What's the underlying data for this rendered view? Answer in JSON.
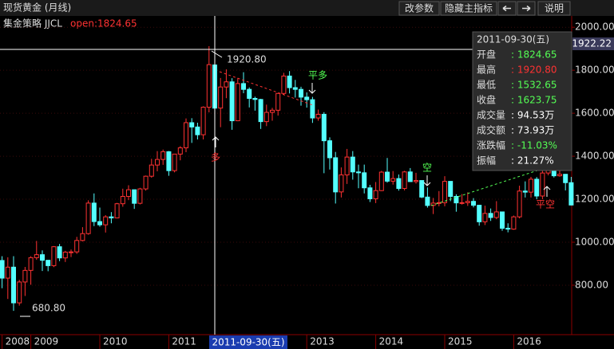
{
  "chart_data": {
    "type": "candlestick",
    "title": "现货黄金 (月线)",
    "buttons": [
      "改参数",
      "隐藏主指标",
      "说明"
    ],
    "indicator": {
      "name": "集金策略 JJCL",
      "value": "open:1824.65"
    },
    "categories": [
      "2008",
      null,
      null,
      null,
      null,
      "2009",
      null,
      null,
      null,
      null,
      null,
      null,
      null,
      null,
      null,
      null,
      null,
      "2010",
      null,
      null,
      null,
      null,
      null,
      null,
      null,
      null,
      null,
      null,
      null,
      "2011",
      null,
      null,
      null,
      null,
      null,
      null,
      null,
      null,
      null,
      null,
      null,
      null,
      null,
      null,
      null,
      null,
      null,
      null,
      null,
      null,
      null,
      null,
      null,
      "2013",
      null,
      null,
      null,
      null,
      null,
      null,
      null,
      null,
      null,
      null,
      null,
      "2014",
      null,
      null,
      null,
      null,
      null,
      null,
      null,
      null,
      null,
      null,
      null,
      "2015",
      null,
      null,
      null,
      null,
      null,
      null,
      null,
      null,
      null,
      null,
      null,
      "2016",
      null,
      null,
      null,
      null,
      null,
      null,
      null,
      null,
      null,
      null
    ],
    "up_color": "#ff3232",
    "down_color": "#54ffff",
    "series": {
      "open": [
        915,
        833,
        884,
        718,
        815,
        869,
        928,
        942,
        916,
        891,
        979,
        927,
        954,
        955,
        1008,
        1040,
        1182,
        1096,
        1081,
        1118,
        1113,
        1179,
        1213,
        1244,
        1181,
        1248,
        1307,
        1359,
        1385,
        1421,
        1333,
        1410,
        1439,
        1556,
        1536,
        1500,
        1628,
        1824.65,
        1624,
        1722,
        1746,
        1565,
        1738,
        1711,
        1669,
        1664,
        1561,
        1604,
        1614,
        1692,
        1773,
        1719,
        1711,
        1675,
        1663,
        1578,
        1595,
        1472,
        1393,
        1234,
        1313,
        1396,
        1327,
        1323,
        1253,
        1202,
        1240,
        1326,
        1284,
        1296,
        1250,
        1327,
        1282,
        1287,
        1210,
        1171,
        1182,
        1184,
        1283,
        1213,
        1183,
        1184,
        1190,
        1172,
        1095,
        1134,
        1115,
        1141,
        1065,
        1061,
        1118,
        1238,
        1233,
        1293,
        1215,
        1322,
        1351,
        1309,
        1316,
        1277
      ],
      "high": [
        935,
        930,
        935,
        825,
        885,
        935,
        1006,
        962,
        916,
        982,
        992,
        960,
        966,
        1025,
        1070,
        1195,
        1227,
        1161,
        1126,
        1140,
        1183,
        1249,
        1265,
        1245,
        1253,
        1310,
        1388,
        1424,
        1431,
        1424,
        1411,
        1447,
        1576,
        1577,
        1556,
        1632,
        1912,
        1920.8,
        1764,
        1804,
        1763,
        1764,
        1791,
        1720,
        1677,
        1667,
        1640,
        1625,
        1694,
        1788,
        1796,
        1755,
        1723,
        1697,
        1676,
        1617,
        1605,
        1488,
        1420,
        1348,
        1434,
        1424,
        1361,
        1361,
        1267,
        1280,
        1332,
        1392,
        1331,
        1315,
        1332,
        1345,
        1323,
        1287,
        1255,
        1206,
        1238,
        1307,
        1284,
        1223,
        1224,
        1232,
        1205,
        1174,
        1170,
        1157,
        1191,
        1142,
        1088,
        1124,
        1263,
        1283,
        1304,
        1303,
        1362,
        1375,
        1367,
        1352,
        1317,
        1304
      ],
      "low": [
        786,
        736,
        680.8,
        705,
        750,
        802,
        918,
        866,
        865,
        884,
        912,
        908,
        931,
        946,
        1004,
        1035,
        1075,
        1072,
        1045,
        1088,
        1111,
        1165,
        1196,
        1155,
        1176,
        1240,
        1300,
        1330,
        1360,
        1309,
        1325,
        1381,
        1419,
        1462,
        1478,
        1478,
        1604,
        1532.65,
        1535,
        1670,
        1523,
        1563,
        1693,
        1627,
        1612,
        1527,
        1540,
        1565,
        1589,
        1685,
        1692,
        1673,
        1635,
        1626,
        1555,
        1565,
        1321,
        1338,
        1180,
        1208,
        1271,
        1291,
        1251,
        1227,
        1187,
        1182,
        1238,
        1277,
        1268,
        1240,
        1241,
        1281,
        1273,
        1205,
        1161,
        1131,
        1167,
        1167,
        1191,
        1142,
        1175,
        1169,
        1162,
        1077,
        1080,
        1099,
        1107,
        1053,
        1046,
        1058,
        1111,
        1208,
        1208,
        1200,
        1200,
        1311,
        1301,
        1305,
        1241,
        1171
      ],
      "close": [
        833,
        884,
        718,
        815,
        869,
        928,
        942,
        916,
        891,
        979,
        927,
        954,
        955,
        1008,
        1040,
        1182,
        1096,
        1081,
        1118,
        1113,
        1179,
        1213,
        1244,
        1181,
        1248,
        1307,
        1359,
        1385,
        1421,
        1333,
        1410,
        1439,
        1556,
        1536,
        1500,
        1628,
        1826,
        1623.75,
        1722,
        1746,
        1565,
        1738,
        1711,
        1669,
        1664,
        1561,
        1604,
        1614,
        1692,
        1773,
        1719,
        1711,
        1675,
        1663,
        1578,
        1595,
        1472,
        1393,
        1234,
        1313,
        1396,
        1327,
        1323,
        1253,
        1202,
        1240,
        1326,
        1284,
        1296,
        1250,
        1327,
        1282,
        1287,
        1210,
        1171,
        1182,
        1184,
        1283,
        1213,
        1183,
        1184,
        1190,
        1172,
        1095,
        1134,
        1115,
        1141,
        1065,
        1061,
        1118,
        1238,
        1233,
        1293,
        1215,
        1322,
        1351,
        1309,
        1316,
        1277,
        1173
      ]
    },
    "ylim": [
      570,
      2060
    ],
    "yticks": [
      {
        "value": 800,
        "label": "800.00"
      },
      {
        "value": 1000,
        "label": "1000.00"
      },
      {
        "value": 1200,
        "label": "1200.00"
      },
      {
        "value": 1400,
        "label": "1400.00"
      },
      {
        "value": 1600,
        "label": "1600.00"
      },
      {
        "value": 1800,
        "label": "1800.00"
      },
      {
        "value": 2000,
        "label": "2000.00"
      }
    ],
    "grid": true,
    "crosshair": {
      "index": 37,
      "value": 1922.22,
      "date": "2011-09-30(五)"
    },
    "annotations": {
      "high_label": "1920.80",
      "low_label": "680.80",
      "long": "多",
      "close_long": "平多",
      "short": "空",
      "close_short": "平空"
    },
    "info_box": {
      "date": "2011-09-30(五)",
      "rows": [
        [
          "开盘",
          ": 1824.65"
        ],
        [
          "最高",
          ": 1920.80"
        ],
        [
          "最低",
          ": 1532.65"
        ],
        [
          "收盘",
          ": 1623.75"
        ],
        [
          "成交量",
          ": 94.53万"
        ],
        [
          "成交额",
          ": 73.93万"
        ],
        [
          "涨跌幅",
          ": -11.03%"
        ],
        [
          "振幅",
          ": 21.27%"
        ]
      ],
      "colors": [
        "#54ff54",
        "#ff3232",
        "#54ff54",
        "#54ff54",
        "#ffffff",
        "#ffffff",
        "#54ff54",
        "#ffffff"
      ]
    }
  }
}
